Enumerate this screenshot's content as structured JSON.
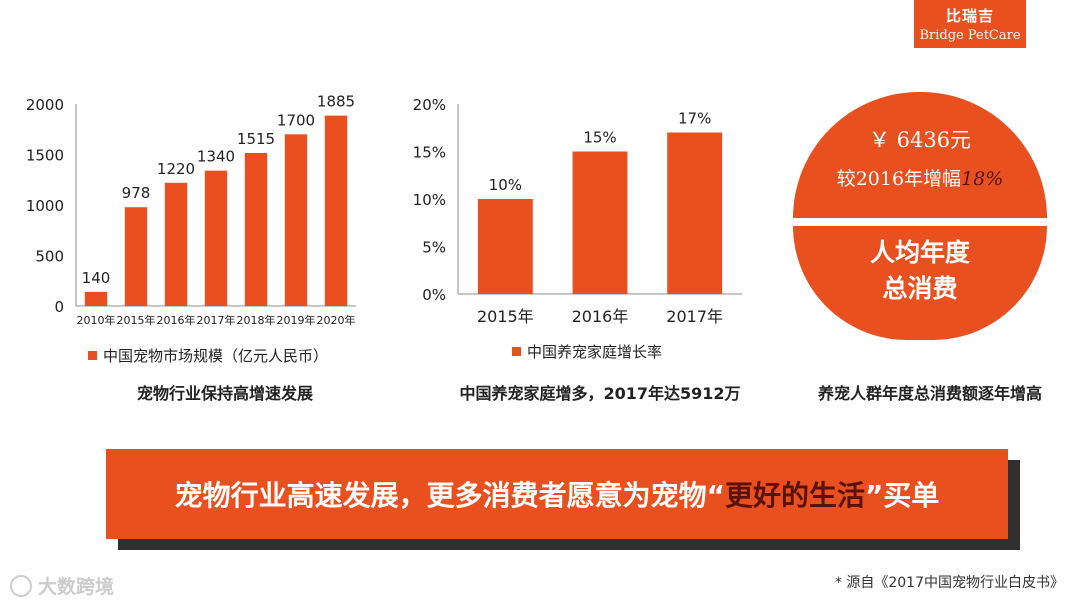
{
  "logo": {
    "cn": "比瑞吉",
    "en": "Bridge PetCare"
  },
  "chart_data": [
    {
      "type": "bar",
      "categories": [
        "2010年",
        "2015年",
        "2016年",
        "2017年",
        "2018年",
        "2019年",
        "2020年"
      ],
      "series": [
        {
          "name": "中国宠物市场规模（亿元人民币）",
          "values": [
            140,
            978,
            1220,
            1340,
            1515,
            1700,
            1885
          ]
        }
      ],
      "data_labels": [
        "140",
        "978",
        "1220",
        "1340",
        "1515",
        "1700",
        "1885"
      ],
      "yticks": [
        "0",
        "500",
        "1000",
        "1500",
        "2000"
      ],
      "ylim": [
        0,
        2000
      ],
      "grid": false,
      "legend": "bottom",
      "color": "#e8501f"
    },
    {
      "type": "bar",
      "categories": [
        "2015年",
        "2016年",
        "2017年"
      ],
      "series": [
        {
          "name": "中国养宠家庭增长率",
          "values": [
            10,
            15,
            17
          ]
        }
      ],
      "data_labels": [
        "10%",
        "15%",
        "17%"
      ],
      "yticks": [
        "0%",
        "5%",
        "10%",
        "15%",
        "20%"
      ],
      "ylim": [
        0,
        20
      ],
      "grid": false,
      "legend": "bottom",
      "color": "#e8501f"
    }
  ],
  "captions": {
    "chart1": "宠物行业保持高增速发展",
    "chart2": "中国养宠家庭增多，2017年达5912万",
    "stat": "养宠人群年度总消费额逐年增高"
  },
  "stat": {
    "price": "￥ 6436元",
    "growth_prefix": "较2016年增幅",
    "growth_pct": "18%",
    "title_line1": "人均年度",
    "title_line2": "总消费"
  },
  "banner": {
    "before": "宠物行业高速发展，更多消费者愿意为宠物“",
    "highlight": "更好的生活",
    "after": "”买单"
  },
  "watermark": "大数跨境",
  "source": "* 源自《2017中国宠物行业白皮书》",
  "colors": {
    "accent": "#e8501f",
    "dark_red": "#5a1208",
    "shadow": "#303030"
  }
}
